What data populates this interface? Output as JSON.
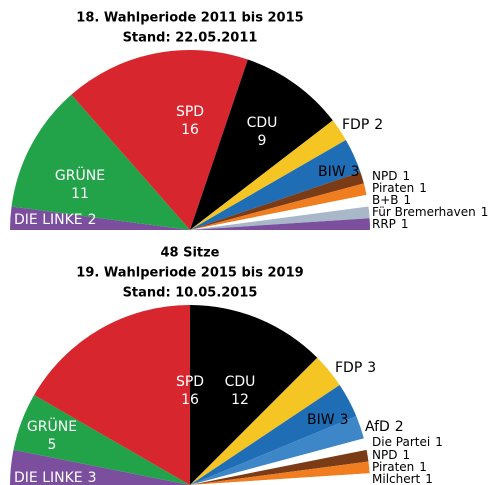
{
  "chart_data": [
    {
      "type": "semipie",
      "title": "18. Wahlperiode 2011 bis 2015",
      "subtitle": "Stand: 22.05.2011",
      "annotation": "48 Sitze",
      "categories": [
        "DIE LINKE",
        "GRÜNE",
        "SPD",
        "CDU",
        "FDP",
        "BIW",
        "NPD",
        "Piraten",
        "B+B",
        "Für Bremerhaven",
        "RRP"
      ],
      "values": [
        2,
        11,
        16,
        9,
        2,
        3,
        1,
        1,
        1,
        1,
        1
      ],
      "colors": [
        "#7b4f9e",
        "#22a34a",
        "#d7262e",
        "#000000",
        "#f5c524",
        "#1f6db5",
        "#7a3b16",
        "#f07d1f",
        "#ffffff",
        "#a8b8c8",
        "#7b4f9e"
      ]
    },
    {
      "type": "semipie",
      "title": "19. Wahlperiode 2015 bis 2019",
      "subtitle": "Stand: 10.05.2015",
      "categories": [
        "DIE LINKE",
        "GRÜNE",
        "SPD",
        "CDU",
        "FDP",
        "BIW",
        "AfD",
        "Die Partei",
        "NPD",
        "Piraten",
        "Milchert"
      ],
      "values": [
        3,
        5,
        16,
        12,
        3,
        3,
        2,
        1,
        1,
        1,
        1
      ],
      "colors": [
        "#7b4f9e",
        "#22a34a",
        "#d7262e",
        "#000000",
        "#f5c524",
        "#1f6db5",
        "#3d86c8",
        "#ffffff",
        "#7a3b16",
        "#f07d1f",
        "#ffffff"
      ]
    }
  ]
}
